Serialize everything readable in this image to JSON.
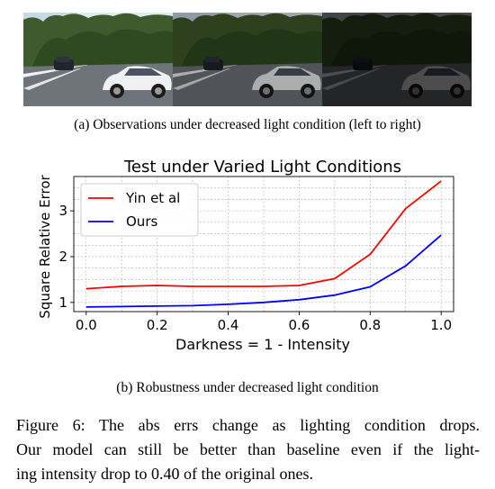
{
  "subfigure_a": {
    "caption": "(a) Observations under decreased light condition (left to right)",
    "brightness_levels": [
      1.0,
      0.72,
      0.32
    ]
  },
  "subfigure_b": {
    "caption": "(b) Robustness under decreased light condition"
  },
  "figure_caption": {
    "line1": "Figure 6: The abs errs change as lighting condition drops.",
    "line2": "Our model can still be better than baseline even if the light-",
    "line3": "ing intensity drop to 0.40 of the original ones."
  },
  "chart_data": {
    "type": "line",
    "title": "Test under Varied Light Conditions",
    "xlabel": "Darkness = 1 - Intensity",
    "ylabel": "Square Relative Error",
    "xlim": [
      -0.035,
      1.035
    ],
    "ylim": [
      0.8,
      3.75
    ],
    "x_ticks": [
      0.0,
      0.2,
      0.4,
      0.6,
      0.8,
      1.0
    ],
    "x_tick_labels": [
      "0.0",
      "0.2",
      "0.4",
      "0.6",
      "0.8",
      "1.0"
    ],
    "y_ticks": [
      1,
      2,
      3
    ],
    "y_tick_labels": [
      "1",
      "2",
      "3"
    ],
    "grid": true,
    "legend_position": "upper-left",
    "x": [
      0.0,
      0.1,
      0.2,
      0.3,
      0.4,
      0.5,
      0.6,
      0.7,
      0.8,
      0.9,
      1.0
    ],
    "series": [
      {
        "name": "Yin et al",
        "color": "#ff0000",
        "values": [
          1.3,
          1.35,
          1.37,
          1.35,
          1.35,
          1.35,
          1.37,
          1.52,
          2.05,
          3.05,
          3.65
        ]
      },
      {
        "name": "Ours",
        "color": "#0000ff",
        "values": [
          0.9,
          0.91,
          0.92,
          0.93,
          0.96,
          1.0,
          1.06,
          1.16,
          1.34,
          1.8,
          2.47
        ]
      }
    ]
  }
}
